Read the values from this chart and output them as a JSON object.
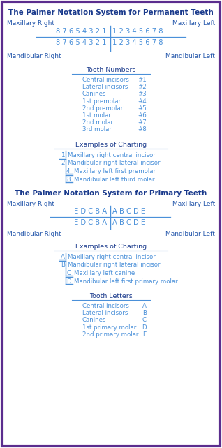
{
  "bg_color": "#ffffff",
  "border_color": "#5b2d8e",
  "title_color": "#1a3a8c",
  "text_color": "#4a90d9",
  "label_color": "#2255aa",
  "line_color": "#4a90d9",
  "perm_title": "The Palmer Notation System for Permanent Teeth",
  "prim_title": "The Palmer Notation System for Primary Teeth",
  "maxillary_right": "Maxillary Right",
  "maxillary_left": "Maxillary Left",
  "mandibular_right": "Mandibular Right",
  "mandibular_left": "Mandibular Left",
  "perm_upper_right": "8 7 6 5 4 3 2 1",
  "perm_upper_left": "1 2 3 4 5 6 7 8",
  "perm_lower_right": "8 7 6 5 4 3 2 1",
  "perm_lower_left": "1 2 3 4 5 6 7 8",
  "prim_upper_right": "E D C B A",
  "prim_upper_left": "A B C D E",
  "prim_lower_right": "E D C B A",
  "prim_lower_left": "A B C D E",
  "tooth_numbers_title": "Tooth Numbers",
  "tooth_numbers": [
    [
      "Central incisors",
      "#1"
    ],
    [
      "Lateral incisors",
      "#2"
    ],
    [
      "Canines",
      "#3"
    ],
    [
      "1st premolar",
      "#4"
    ],
    [
      "2nd premolar",
      "#5"
    ],
    [
      "1st molar",
      "#6"
    ],
    [
      "2nd molar",
      "#7"
    ],
    [
      "3rd molar",
      "#8"
    ]
  ],
  "examples_title": "Examples of Charting",
  "perm_examples": [
    {
      "symbol": "1",
      "bracket": "right_top",
      "text": "Maxillary right central incisor"
    },
    {
      "symbol": "2",
      "bracket": "right_bottom",
      "text": "Mandibular right lateral incisor"
    },
    {
      "symbol": "4",
      "bracket": "left_top",
      "text": "Maxillary left first premolar"
    },
    {
      "symbol": "8",
      "bracket": "left_bottom",
      "text": "Mandibular left third molar"
    }
  ],
  "prim_examples": [
    {
      "symbol": "A",
      "bracket": "right_top",
      "text": "Maxillary right central incisor"
    },
    {
      "symbol": "B",
      "bracket": "right_bottom",
      "text": "Mandibular right lateral incisor"
    },
    {
      "symbol": "C",
      "bracket": "left_top",
      "text": "Maxillary left canine"
    },
    {
      "symbol": "D",
      "bracket": "left_bottom",
      "text": "Mandibular left first primary molar"
    }
  ],
  "tooth_letters_title": "Tooth Letters",
  "tooth_letters": [
    [
      "Central incisors",
      "A"
    ],
    [
      "Lateral incisors",
      "B"
    ],
    [
      "Canines",
      "C"
    ],
    [
      "1st primary molar",
      "D"
    ],
    [
      "2nd primary molar",
      "E"
    ]
  ]
}
